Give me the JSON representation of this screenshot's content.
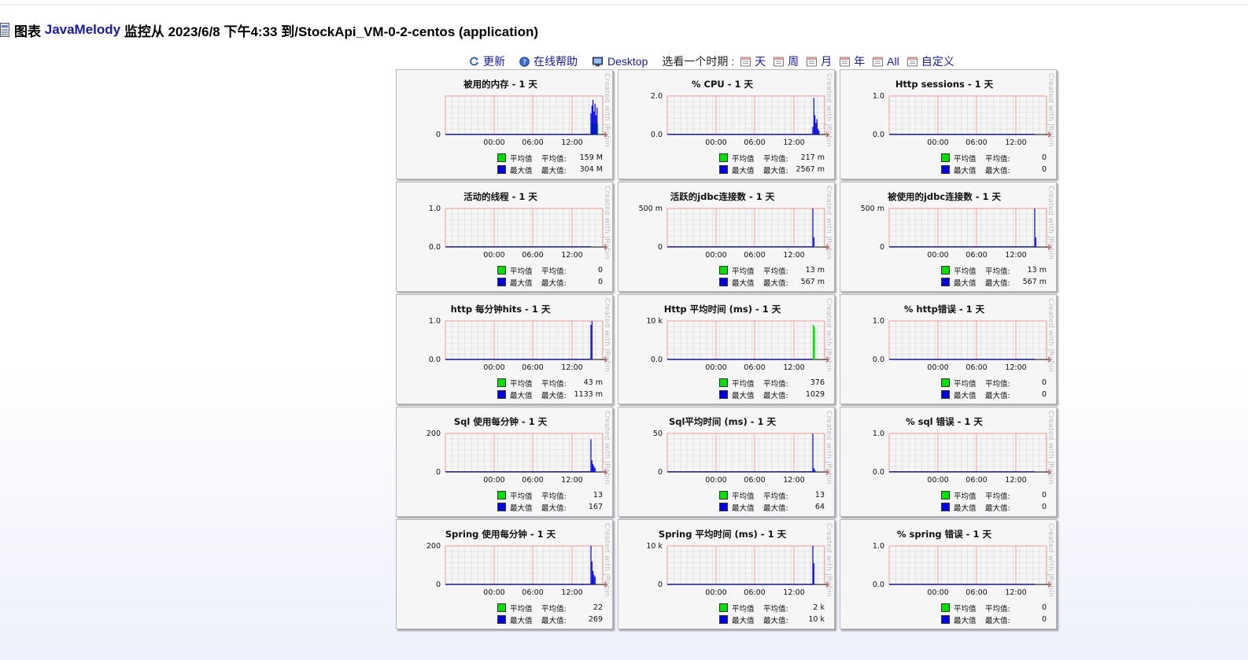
{
  "header": {
    "icon": "chart-page-icon",
    "prefix": "图表",
    "brand": "JavaMelody",
    "text": "监控从 2023/6/8 下午4:33 到/StockApi_VM-0-2-centos (application)"
  },
  "toolbar": {
    "refresh": {
      "label": "更新",
      "icon": "refresh-icon"
    },
    "help": {
      "label": "在线帮助",
      "icon": "help-icon"
    },
    "desktop": {
      "label": "Desktop",
      "icon": "desktop-icon"
    },
    "period_label": "选看一个时期 :",
    "periods": [
      {
        "label": "天",
        "icon": "calendar-day-icon"
      },
      {
        "label": "周",
        "icon": "calendar-week-icon"
      },
      {
        "label": "月",
        "icon": "calendar-month-icon"
      },
      {
        "label": "年",
        "icon": "calendar-year-icon"
      },
      {
        "label": "All",
        "icon": "calendar-all-icon"
      },
      {
        "label": "自定义",
        "icon": "calendar-custom-icon"
      }
    ]
  },
  "colors": {
    "avg": "#00e000",
    "max": "#0000e0",
    "grid_major": "#f08080",
    "grid_minor": "#d8d8d8"
  },
  "legend_labels": {
    "avg_short": "平均值",
    "avg_long": "平均值:",
    "max_short": "最大值",
    "max_long": "最大值:"
  },
  "watermark": "Created with JRobin",
  "chart_data": [
    {
      "type": "area",
      "title": "被用的内存 - 1 天",
      "y_ticks": [
        "0"
      ],
      "y_scale": 1,
      "x_ticks": [
        "00:00",
        "06:00",
        "12:00"
      ],
      "avg_value": "159 M",
      "max_value": "304 M",
      "spike_max": [
        0.55,
        0.75,
        0.9,
        0.6,
        0.8,
        0.5,
        0.7
      ],
      "spike_avg": [
        0.28,
        0.3,
        0.32,
        0.28,
        0.3,
        0.26,
        0.28
      ]
    },
    {
      "type": "line",
      "title": "% CPU - 1 天",
      "y_ticks": [
        "0.0",
        "2.0"
      ],
      "y_scale": 2,
      "x_ticks": [
        "00:00",
        "06:00",
        "12:00"
      ],
      "avg_value": "217 m",
      "max_value": "2567 m",
      "spike_max": [
        0.2,
        0.95,
        0.5,
        0.3,
        0.4,
        0.15,
        0.1
      ],
      "spike_avg": []
    },
    {
      "type": "line",
      "title": "Http sessions - 1 天",
      "y_ticks": [
        "0.0",
        "1.0"
      ],
      "y_scale": 2,
      "x_ticks": [
        "00:00",
        "06:00",
        "12:00"
      ],
      "avg_value": "0",
      "max_value": "0",
      "spike_max": [],
      "spike_avg": []
    },
    {
      "type": "line",
      "title": "活动的线程 - 1 天",
      "y_ticks": [
        "0.0",
        "1.0"
      ],
      "y_scale": 2,
      "x_ticks": [
        "00:00",
        "06:00",
        "12:00"
      ],
      "avg_value": "0",
      "max_value": "0",
      "spike_max": [],
      "spike_avg": []
    },
    {
      "type": "line",
      "title": "活跃的jdbc连接数 - 1 天",
      "y_ticks": [
        "0",
        "500 m"
      ],
      "y_scale": 2,
      "x_ticks": [
        "00:00",
        "06:00",
        "12:00"
      ],
      "avg_value": "13 m",
      "max_value": "567 m",
      "spike_max": [
        1.0,
        0.25
      ],
      "spike_avg": []
    },
    {
      "type": "line",
      "title": "被使用的jdbc连接数 - 1 天",
      "y_ticks": [
        "0",
        "500 m"
      ],
      "y_scale": 2,
      "x_ticks": [
        "00:00",
        "06:00",
        "12:00"
      ],
      "avg_value": "13 m",
      "max_value": "567 m",
      "spike_max": [
        1.0,
        0.25
      ],
      "spike_avg": []
    },
    {
      "type": "line",
      "title": "http 每分钟hits - 1 天",
      "y_ticks": [
        "0.0",
        "1.0"
      ],
      "y_scale": 2,
      "x_ticks": [
        "00:00",
        "06:00",
        "12:00"
      ],
      "avg_value": "43 m",
      "max_value": "1133 m",
      "spike_max": [
        0.9,
        1.0
      ],
      "spike_avg": []
    },
    {
      "type": "line",
      "title": "Http 平均时间 (ms) - 1 天",
      "y_ticks": [
        "0.0",
        "10 k"
      ],
      "y_scale": 2,
      "x_ticks": [
        "00:00",
        "06:00",
        "12:00"
      ],
      "avg_value": "376",
      "max_value": "1029",
      "spike_max": [],
      "spike_avg": [
        0.9,
        0.85
      ]
    },
    {
      "type": "line",
      "title": "% http错误 - 1 天",
      "y_ticks": [
        "0.0",
        "1.0"
      ],
      "y_scale": 2,
      "x_ticks": [
        "00:00",
        "06:00",
        "12:00"
      ],
      "avg_value": "0",
      "max_value": "0",
      "spike_max": [],
      "spike_avg": []
    },
    {
      "type": "line",
      "title": "Sql 使用每分钟 - 1 天",
      "y_ticks": [
        "0",
        "200"
      ],
      "y_scale": 2,
      "x_ticks": [
        "00:00",
        "06:00",
        "12:00"
      ],
      "avg_value": "13",
      "max_value": "167",
      "spike_max": [
        0.85,
        0.3,
        0.2,
        0.15,
        0.1
      ],
      "spike_avg": []
    },
    {
      "type": "line",
      "title": "Sql平均时间 (ms) - 1 天",
      "y_ticks": [
        "0",
        "50"
      ],
      "y_scale": 2,
      "x_ticks": [
        "00:00",
        "06:00",
        "12:00"
      ],
      "avg_value": "13",
      "max_value": "64",
      "spike_max": [
        1.0,
        0.1,
        0.05
      ],
      "spike_avg": []
    },
    {
      "type": "line",
      "title": "% sql 错误 - 1 天",
      "y_ticks": [
        "0.0",
        "1.0"
      ],
      "y_scale": 2,
      "x_ticks": [
        "00:00",
        "06:00",
        "12:00"
      ],
      "avg_value": "0",
      "max_value": "0",
      "spike_max": [],
      "spike_avg": []
    },
    {
      "type": "line",
      "title": "Spring 使用每分钟 - 1 天",
      "y_ticks": [
        "0",
        "200"
      ],
      "y_scale": 2,
      "x_ticks": [
        "00:00",
        "06:00",
        "12:00"
      ],
      "avg_value": "22",
      "max_value": "269",
      "spike_max": [
        1.0,
        0.6,
        0.35,
        0.25,
        0.2
      ],
      "spike_avg": []
    },
    {
      "type": "line",
      "title": "Spring 平均时间 (ms) - 1 天",
      "y_ticks": [
        "0",
        "10 k"
      ],
      "y_scale": 2,
      "x_ticks": [
        "00:00",
        "06:00",
        "12:00"
      ],
      "avg_value": "2 k",
      "max_value": "10 k",
      "spike_max": [
        1.0,
        0.55
      ],
      "spike_avg": []
    },
    {
      "type": "line",
      "title": "% spring 错误 - 1 天",
      "y_ticks": [
        "0.0",
        "1.0"
      ],
      "y_scale": 2,
      "x_ticks": [
        "00:00",
        "06:00",
        "12:00"
      ],
      "avg_value": "0",
      "max_value": "0",
      "spike_max": [],
      "spike_avg": []
    }
  ]
}
